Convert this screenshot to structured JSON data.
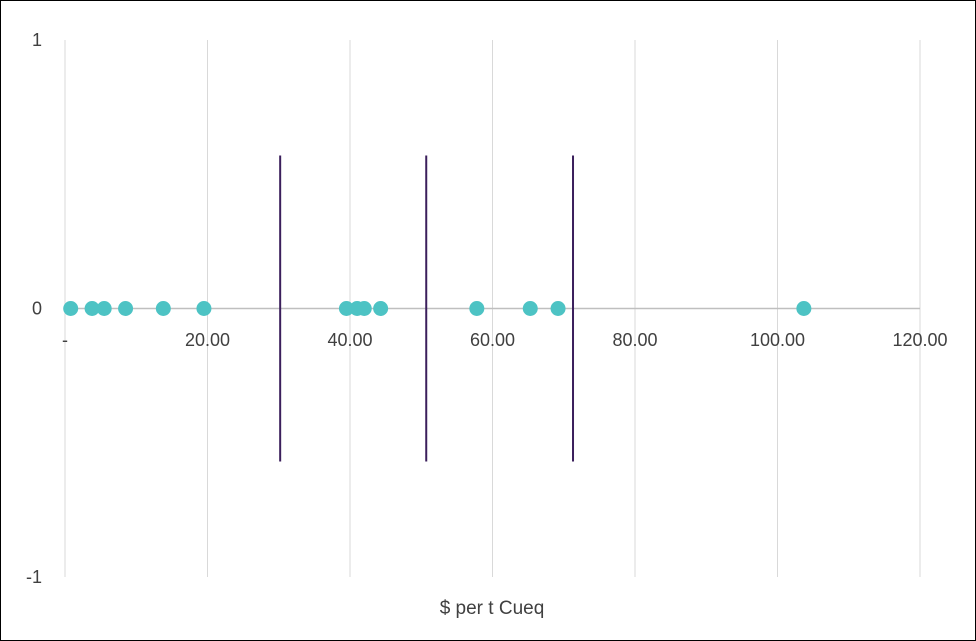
{
  "chart_data": {
    "type": "scatter",
    "xlabel": "$ per t Cueq",
    "ylabel": "",
    "xlim": [
      0,
      120
    ],
    "ylim": [
      -1,
      1
    ],
    "grid": "vertical",
    "x_ticks": [
      {
        "value": 0,
        "label": "-"
      },
      {
        "value": 20,
        "label": "20.00"
      },
      {
        "value": 40,
        "label": "40.00"
      },
      {
        "value": 60,
        "label": "60.00"
      },
      {
        "value": 80,
        "label": "80.00"
      },
      {
        "value": 100,
        "label": "100.00"
      },
      {
        "value": 120,
        "label": "120.00"
      }
    ],
    "y_ticks": [
      {
        "value": 1,
        "label": "1"
      },
      {
        "value": 0,
        "label": "0"
      },
      {
        "value": -1,
        "label": "-1"
      }
    ],
    "series": [
      {
        "color": "#4DC3C4",
        "points": [
          {
            "x": 0.8,
            "y": 0
          },
          {
            "x": 3.8,
            "y": 0
          },
          {
            "x": 5.5,
            "y": 0
          },
          {
            "x": 8.5,
            "y": 0
          },
          {
            "x": 13.8,
            "y": 0
          },
          {
            "x": 19.5,
            "y": 0
          },
          {
            "x": 39.5,
            "y": 0
          },
          {
            "x": 41.0,
            "y": 0
          },
          {
            "x": 42.0,
            "y": 0
          },
          {
            "x": 44.3,
            "y": 0
          },
          {
            "x": 57.8,
            "y": 0
          },
          {
            "x": 65.3,
            "y": 0
          },
          {
            "x": 69.2,
            "y": 0
          },
          {
            "x": 103.7,
            "y": 0
          }
        ]
      }
    ],
    "vertical_lines": [
      {
        "x": 30.2,
        "y_top": 0.57,
        "y_bottom": -0.57
      },
      {
        "x": 50.7,
        "y_top": 0.57,
        "y_bottom": -0.57
      },
      {
        "x": 71.3,
        "y_top": 0.57,
        "y_bottom": -0.57
      }
    ],
    "colors": {
      "points": "#4DC3C4",
      "lines": "#3B1F5C",
      "gridlines": "#D9D9D9",
      "zero_axis": "#BFBFBF",
      "text": "#404040",
      "border": "#000000"
    }
  }
}
